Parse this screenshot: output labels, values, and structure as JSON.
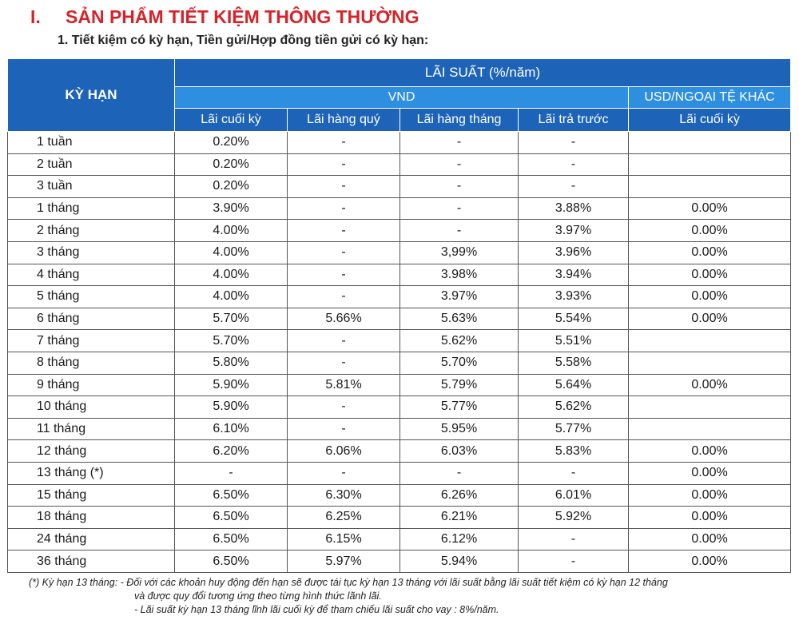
{
  "section": {
    "number": "I.",
    "title": "SẢN PHẨM TIẾT KIỆM THÔNG THƯỜNG"
  },
  "subtitle": "1. Tiết kiệm có kỳ hạn, Tiền gửi/Hợp đồng tiền gửi có kỳ hạn:",
  "table": {
    "term_header": "KỲ HẠN",
    "rate_header": "LÃI SUẤT (%/năm)",
    "vnd_header": "VND",
    "usd_header": "USD/NGOẠI TỆ KHÁC",
    "columns": [
      "Lãi cuối kỳ",
      "Lãi hàng quý",
      "Lãi hàng tháng",
      "Lãi trả trước",
      "Lãi cuối kỳ"
    ],
    "rows": [
      {
        "term": "1 tuần",
        "c1": "0.20%",
        "c2": "-",
        "c3": "-",
        "c4": "-",
        "c5": ""
      },
      {
        "term": "2 tuần",
        "c1": "0.20%",
        "c2": "-",
        "c3": "-",
        "c4": "-",
        "c5": ""
      },
      {
        "term": "3 tuần",
        "c1": "0.20%",
        "c2": "-",
        "c3": "-",
        "c4": "-",
        "c5": ""
      },
      {
        "term": "1 tháng",
        "c1": "3.90%",
        "c2": "-",
        "c3": "-",
        "c4": "3.88%",
        "c5": "0.00%"
      },
      {
        "term": "2 tháng",
        "c1": "4.00%",
        "c2": "-",
        "c3": "-",
        "c4": "3.97%",
        "c5": "0.00%"
      },
      {
        "term": "3 tháng",
        "c1": "4.00%",
        "c2": "-",
        "c3": "3,99%",
        "c4": "3.96%",
        "c5": "0.00%"
      },
      {
        "term": "4 tháng",
        "c1": "4.00%",
        "c2": "-",
        "c3": "3.98%",
        "c4": "3.94%",
        "c5": "0.00%"
      },
      {
        "term": "5 tháng",
        "c1": "4.00%",
        "c2": "-",
        "c3": "3.97%",
        "c4": "3.93%",
        "c5": "0.00%"
      },
      {
        "term": "6 tháng",
        "c1": "5.70%",
        "c2": "5.66%",
        "c3": "5.63%",
        "c4": "5.54%",
        "c5": "0.00%"
      },
      {
        "term": "7 tháng",
        "c1": "5.70%",
        "c2": "-",
        "c3": "5.62%",
        "c4": "5.51%",
        "c5": ""
      },
      {
        "term": "8 tháng",
        "c1": "5.80%",
        "c2": "-",
        "c3": "5.70%",
        "c4": "5.58%",
        "c5": ""
      },
      {
        "term": "9 tháng",
        "c1": "5.90%",
        "c2": "5.81%",
        "c3": "5.79%",
        "c4": "5.64%",
        "c5": "0.00%"
      },
      {
        "term": "10 tháng",
        "c1": "5.90%",
        "c2": "-",
        "c3": "5.77%",
        "c4": "5.62%",
        "c5": ""
      },
      {
        "term": "11 tháng",
        "c1": "6.10%",
        "c2": "-",
        "c3": "5.95%",
        "c4": "5.77%",
        "c5": ""
      },
      {
        "term": "12 tháng",
        "c1": "6.20%",
        "c2": "6.06%",
        "c3": "6.03%",
        "c4": "5.83%",
        "c5": "0.00%"
      },
      {
        "term": "13 tháng (*)",
        "c1": "-",
        "c2": "-",
        "c3": "-",
        "c4": "-",
        "c5": "0.00%"
      },
      {
        "term": "15 tháng",
        "c1": "6.50%",
        "c2": "6.30%",
        "c3": "6.26%",
        "c4": "6.01%",
        "c5": "0.00%"
      },
      {
        "term": "18 tháng",
        "c1": "6.50%",
        "c2": "6.25%",
        "c3": "6.21%",
        "c4": "5.92%",
        "c5": "0.00%"
      },
      {
        "term": "24 tháng",
        "c1": "6.50%",
        "c2": "6.15%",
        "c3": "6.12%",
        "c4": "-",
        "c5": "0.00%"
      },
      {
        "term": "36 tháng",
        "c1": "6.50%",
        "c2": "5.97%",
        "c3": "5.94%",
        "c4": "-",
        "c5": "0.00%"
      }
    ]
  },
  "footnote": {
    "line1": "(*) Kỳ hạn 13 tháng: - Đối với các khoản huy động đến hạn sẽ được tái tục kỳ hạn 13 tháng với lãi suất bằng lãi suất tiết kiệm có kỳ hạn 12 tháng",
    "line2": "và được quy đổi tương ứng theo từng hình thức lãnh lãi.",
    "line3": "- Lãi suất kỳ hạn 13 tháng lĩnh lãi cuối kỳ để tham chiếu lãi suất cho vay : 8%/năm."
  },
  "colors": {
    "title": "#d6232a",
    "header_dark": "#1d64b8",
    "header_light": "#2e8ee0"
  }
}
